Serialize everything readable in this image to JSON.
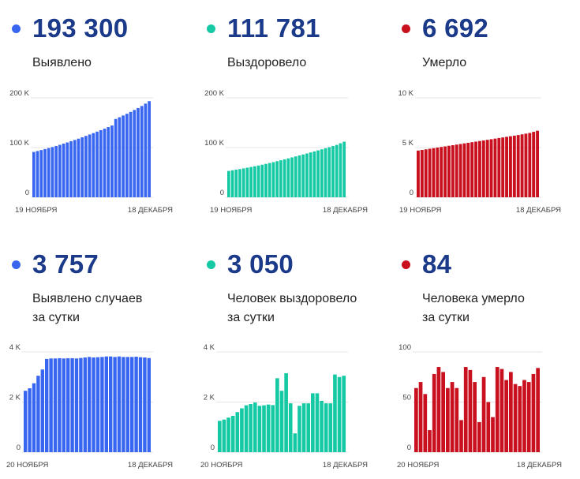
{
  "panels": [
    {
      "id": "cases-total",
      "value": "193 300",
      "label_lines": [
        "Выявлено"
      ],
      "color": "#3866f0",
      "chart_data": {
        "type": "bar",
        "x_start": "19 НОЯБРЯ",
        "x_end": "18 ДЕКАБРЯ",
        "ylim": [
          0,
          200000
        ],
        "yticks": [
          {
            "v": 0,
            "label": "0"
          },
          {
            "v": 100000,
            "label": "100 K"
          },
          {
            "v": 200000,
            "label": "200 K"
          }
        ],
        "values": [
          91200,
          93100,
          95000,
          97000,
          99000,
          101000,
          103200,
          105500,
          107900,
          110300,
          112800,
          115300,
          117900,
          120700,
          123500,
          126300,
          129100,
          132000,
          135000,
          138000,
          141200,
          144400,
          157500,
          161000,
          164500,
          168000,
          171700,
          175600,
          179500,
          183600,
          188400,
          193300
        ]
      }
    },
    {
      "id": "recovered-total",
      "value": "111 781",
      "label_lines": [
        "Выздоровело"
      ],
      "color": "#14c9a4",
      "chart_data": {
        "type": "bar",
        "x_start": "19 НОЯБРЯ",
        "x_end": "18 ДЕКАБРЯ",
        "ylim": [
          0,
          200000
        ],
        "yticks": [
          {
            "v": 0,
            "label": "0"
          },
          {
            "v": 100000,
            "label": "100 K"
          },
          {
            "v": 200000,
            "label": "200 K"
          }
        ],
        "values": [
          53000,
          54300,
          55600,
          56800,
          58100,
          59500,
          60900,
          62400,
          63900,
          65500,
          67200,
          68900,
          70700,
          72600,
          74400,
          76300,
          78300,
          80200,
          82200,
          84100,
          86100,
          88100,
          90200,
          92300,
          94400,
          96500,
          98700,
          100900,
          103100,
          105300,
          108600,
          111781
        ]
      }
    },
    {
      "id": "deaths-total",
      "value": "6 692",
      "label_lines": [
        "Умерло"
      ],
      "color": "#c8101e",
      "chart_data": {
        "type": "bar",
        "x_start": "19 НОЯБРЯ",
        "x_end": "18 ДЕКАБРЯ",
        "ylim": [
          0,
          10000
        ],
        "yticks": [
          {
            "v": 0,
            "label": "0"
          },
          {
            "v": 5000,
            "label": "5 K"
          },
          {
            "v": 10000,
            "label": "10 K"
          }
        ],
        "values": [
          4700,
          4760,
          4820,
          4880,
          4940,
          5000,
          5060,
          5120,
          5180,
          5240,
          5300,
          5360,
          5420,
          5480,
          5540,
          5600,
          5660,
          5720,
          5780,
          5840,
          5900,
          5960,
          6020,
          6080,
          6140,
          6200,
          6260,
          6330,
          6400,
          6470,
          6580,
          6692
        ]
      }
    },
    {
      "id": "cases-daily",
      "value": "3 757",
      "label_lines": [
        "Выявлено случаев",
        "за сутки"
      ],
      "color": "#3866f0",
      "chart_data": {
        "type": "bar",
        "x_start": "20 НОЯБРЯ",
        "x_end": "18 ДЕКАБРЯ",
        "ylim": [
          0,
          4000
        ],
        "yticks": [
          {
            "v": 0,
            "label": "0"
          },
          {
            "v": 2000,
            "label": "2 K"
          },
          {
            "v": 4000,
            "label": "4 K"
          }
        ],
        "values": [
          2450,
          2550,
          2750,
          3050,
          3300,
          3720,
          3740,
          3740,
          3750,
          3740,
          3750,
          3750,
          3740,
          3760,
          3780,
          3800,
          3780,
          3790,
          3800,
          3820,
          3820,
          3800,
          3820,
          3800,
          3800,
          3800,
          3810,
          3790,
          3780,
          3757
        ]
      }
    },
    {
      "id": "recovered-daily",
      "value": "3 050",
      "label_lines": [
        "Человек выздоровело",
        "за сутки"
      ],
      "color": "#14c9a4",
      "chart_data": {
        "type": "bar",
        "x_start": "20 НОЯБРЯ",
        "x_end": "18 ДЕКАБРЯ",
        "ylim": [
          0,
          4000
        ],
        "yticks": [
          {
            "v": 0,
            "label": "0"
          },
          {
            "v": 2000,
            "label": "2 K"
          },
          {
            "v": 4000,
            "label": "4 K"
          }
        ],
        "values": [
          1250,
          1300,
          1380,
          1450,
          1600,
          1750,
          1870,
          1920,
          1980,
          1850,
          1870,
          1900,
          1880,
          2950,
          2450,
          3150,
          1950,
          750,
          1850,
          1950,
          1950,
          2350,
          2350,
          2050,
          1950,
          1950,
          3100,
          3000,
          3050
        ]
      }
    },
    {
      "id": "deaths-daily",
      "value": "84",
      "label_lines": [
        "Человека умерло",
        "за сутки"
      ],
      "color": "#c8101e",
      "chart_data": {
        "type": "bar",
        "x_start": "20 НОЯБРЯ",
        "x_end": "18 ДЕКАБРЯ",
        "ylim": [
          0,
          100
        ],
        "yticks": [
          {
            "v": 0,
            "label": "0"
          },
          {
            "v": 50,
            "label": "50"
          },
          {
            "v": 100,
            "label": "100"
          }
        ],
        "values": [
          64,
          70,
          58,
          22,
          78,
          85,
          80,
          64,
          70,
          64,
          32,
          85,
          82,
          70,
          30,
          75,
          50,
          35,
          85,
          83,
          72,
          80,
          68,
          66,
          72,
          70,
          78,
          84
        ]
      }
    }
  ]
}
